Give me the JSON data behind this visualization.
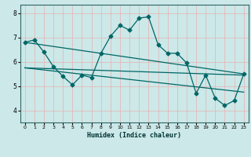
{
  "xlabel": "Humidex (Indice chaleur)",
  "ylabel": "",
  "bg_color": "#cce8e8",
  "grid_color": "#aad4d4",
  "line_color": "#006666",
  "xlim": [
    -0.5,
    23.5
  ],
  "ylim": [
    3.5,
    8.35
  ],
  "yticks": [
    4,
    5,
    6,
    7,
    8
  ],
  "xticks": [
    0,
    1,
    2,
    3,
    4,
    5,
    6,
    7,
    8,
    9,
    10,
    11,
    12,
    13,
    14,
    15,
    16,
    17,
    18,
    19,
    20,
    21,
    22,
    23
  ],
  "line1_x": [
    0,
    1,
    2,
    3,
    4,
    5,
    6,
    7,
    8,
    9,
    10,
    11,
    12,
    13,
    14,
    15,
    16,
    17,
    18,
    19,
    20,
    21,
    22,
    23
  ],
  "line1_y": [
    6.8,
    6.9,
    6.4,
    5.8,
    5.4,
    5.05,
    5.45,
    5.35,
    6.35,
    7.05,
    7.5,
    7.3,
    7.8,
    7.85,
    6.7,
    6.35,
    6.35,
    5.95,
    4.7,
    5.45,
    4.5,
    4.2,
    4.4,
    5.5
  ],
  "line2_x": [
    0,
    23
  ],
  "line2_y": [
    6.8,
    5.5
  ],
  "line3_x": [
    0,
    23
  ],
  "line3_y": [
    5.75,
    4.75
  ],
  "line4_x": [
    0,
    23
  ],
  "line4_y": [
    5.75,
    5.45
  ]
}
